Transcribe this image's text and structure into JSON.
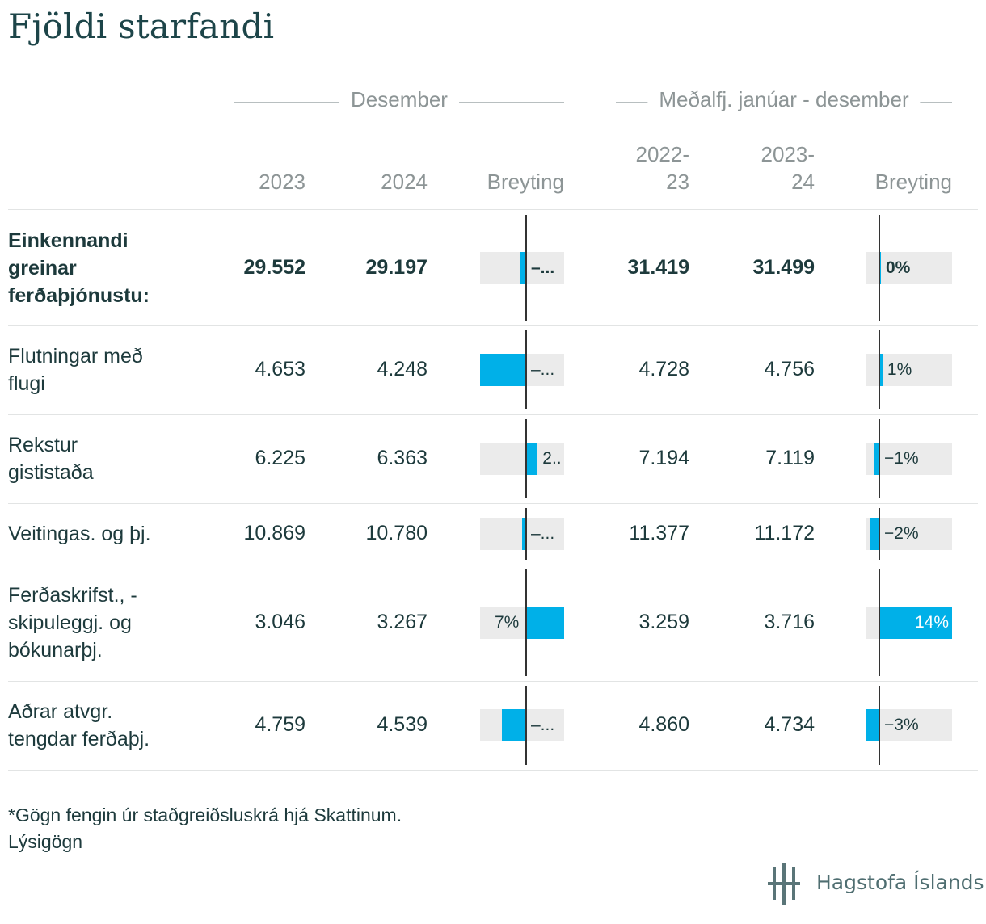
{
  "title": "Fjöldi starfandi",
  "groups": {
    "desember": "Desember",
    "medalfj": "Meðalfj. janúar - desember"
  },
  "columns": {
    "c2023": "2023",
    "c2024": "2024",
    "breyting1": "Breyting",
    "c2022_23_line1": "2022-",
    "c2022_23_line2": "23",
    "c2023_24_line1": "2023-",
    "c2023_24_line2": "24",
    "breyting2": "Breyting"
  },
  "chart_data": {
    "type": "table",
    "rows": [
      {
        "label": "Einkennandi greinar ferðaþjónustu:",
        "bold": true,
        "dec2023": "29.552",
        "dec2024": "29.197",
        "change_dec": -1.2,
        "change_dec_label": "–...",
        "avg2022_23": "31.419",
        "avg2023_24": "31.499",
        "change_avg": 0.25,
        "change_avg_label": "0%"
      },
      {
        "label": "Flutningar með flugi",
        "bold": false,
        "dec2023": "4.653",
        "dec2024": "4.248",
        "change_dec": -8.7,
        "change_dec_label": "–...",
        "avg2022_23": "4.728",
        "avg2023_24": "4.756",
        "change_avg": 0.6,
        "change_avg_label": "1%"
      },
      {
        "label": "Rekstur gististaða",
        "bold": false,
        "dec2023": "6.225",
        "dec2024": "6.363",
        "change_dec": 2.2,
        "change_dec_label": "2..",
        "avg2022_23": "7.194",
        "avg2023_24": "7.119",
        "change_avg": -1.0,
        "change_avg_label": "−1%"
      },
      {
        "label": "Veitingas. og þj.",
        "bold": false,
        "dec2023": "10.869",
        "dec2024": "10.780",
        "change_dec": -0.8,
        "change_dec_label": "–...",
        "avg2022_23": "11.377",
        "avg2023_24": "11.172",
        "change_avg": -1.8,
        "change_avg_label": "−2%"
      },
      {
        "label": "Ferðaskrifst., -skipuleggj. og bókunarþj.",
        "bold": false,
        "dec2023": "3.046",
        "dec2024": "3.267",
        "change_dec": 7.3,
        "change_dec_label": "7%",
        "avg2022_23": "3.259",
        "avg2023_24": "3.716",
        "change_avg": 14.0,
        "change_avg_label": "14%"
      },
      {
        "label": "Aðrar atvgr. tengdar ferðaþj.",
        "bold": false,
        "dec2023": "4.759",
        "dec2024": "4.539",
        "change_dec": -4.6,
        "change_dec_label": "–...",
        "avg2022_23": "4.860",
        "avg2023_24": "4.734",
        "change_avg": -2.6,
        "change_avg_label": "−3%"
      }
    ]
  },
  "footnote": "*Gögn fengin úr staðgreiðsluskrá hjá Skattinum.",
  "metadata_link": "Lýsigögn",
  "logo_text": "Hagstofa Íslands",
  "colors": {
    "bar": "#00b0e8",
    "bar_bg": "#ebebeb",
    "title": "#1d4549"
  }
}
